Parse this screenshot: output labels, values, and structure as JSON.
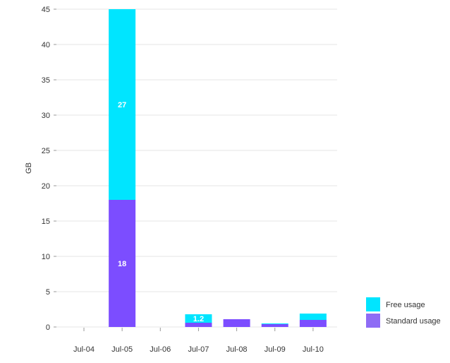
{
  "chart_data": {
    "type": "bar",
    "stacked": true,
    "categories": [
      "Jul-04",
      "Jul-05",
      "Jul-06",
      "Jul-07",
      "Jul-08",
      "Jul-09",
      "Jul-10"
    ],
    "series": [
      {
        "name": "Standard usage",
        "color": "#7c4dff",
        "values": [
          0,
          18,
          0,
          0.6,
          1.1,
          0.4,
          1.0
        ],
        "labels": [
          "",
          "18",
          "",
          "",
          "",
          "",
          ""
        ]
      },
      {
        "name": "Free usage",
        "color": "#00e5ff",
        "values": [
          0,
          27,
          0,
          1.2,
          0,
          0.1,
          0.9
        ],
        "labels": [
          "",
          "27",
          "",
          "1.2",
          "",
          "",
          ""
        ]
      }
    ],
    "ylabel": "GB",
    "ylim": [
      0,
      45
    ],
    "yticks": [
      0,
      5,
      10,
      15,
      20,
      25,
      30,
      35,
      40,
      45
    ],
    "grid": true,
    "legend": {
      "position": "right-bottom",
      "items": [
        {
          "name": "Free usage",
          "color": "#00e5ff"
        },
        {
          "name": "Standard usage",
          "color": "#8e6cf5"
        }
      ]
    }
  }
}
